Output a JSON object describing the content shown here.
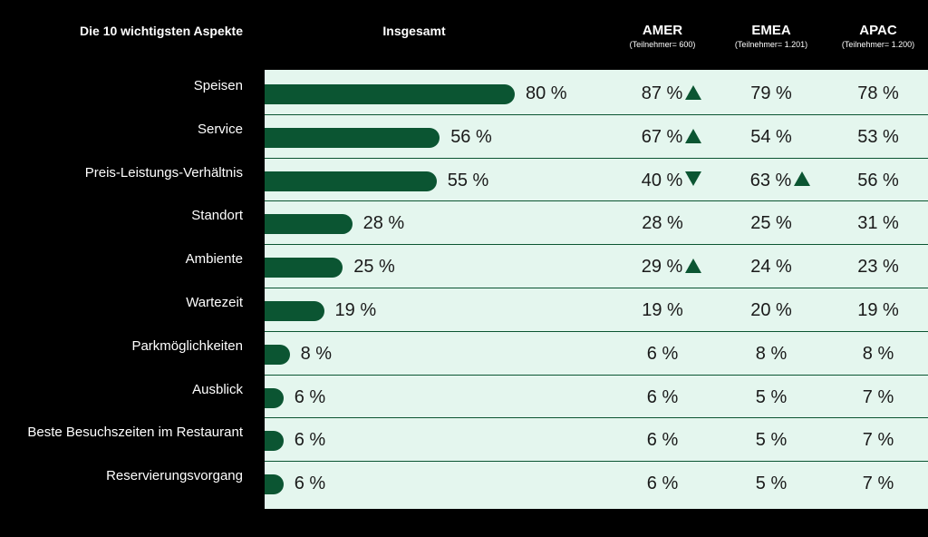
{
  "header": {
    "aspects_title": "Die 10 wichtigsten Aspekte",
    "total_title": "Insgesamt",
    "regions": [
      {
        "name": "AMER",
        "sub": "(Teilnehmer= 600)"
      },
      {
        "name": "EMEA",
        "sub": "(Teilnehmer= 1.201)"
      },
      {
        "name": "APAC",
        "sub": "(Teilnehmer= 1.200)"
      }
    ]
  },
  "colors": {
    "bar": "#0b5532",
    "panel": "#e4f6ee",
    "background": "#000000"
  },
  "chart_data": {
    "type": "bar",
    "orientation": "horizontal",
    "categories": [
      "Speisen",
      "Service",
      "Preis-Leistungs-Verhältnis",
      "Standort",
      "Ambiente",
      "Wartezeit",
      "Parkmöglichkeiten",
      "Ausblick",
      "Beste Besuchszeiten im Restaurant",
      "Reservierungsvorgang"
    ],
    "values": [
      80,
      56,
      55,
      28,
      25,
      19,
      8,
      6,
      6,
      6
    ],
    "value_labels": [
      "80 %",
      "56 %",
      "55 %",
      "28 %",
      "25 %",
      "19 %",
      "8 %",
      "6 %",
      "6 %",
      "6 %"
    ],
    "xlim": [
      0,
      100
    ],
    "grid": false,
    "table_columns": [
      {
        "name": "AMER",
        "values": [
          87,
          67,
          40,
          28,
          29,
          19,
          6,
          6,
          6,
          6
        ],
        "labels": [
          "87 %",
          "67 %",
          "40 %",
          "28 %",
          "29 %",
          "19 %",
          "6 %",
          "6 %",
          "6 %",
          "6 %"
        ],
        "indicators": [
          "up",
          "up",
          "down",
          "",
          "up",
          "",
          "",
          "",
          "",
          ""
        ]
      },
      {
        "name": "EMEA",
        "values": [
          79,
          54,
          63,
          25,
          24,
          20,
          8,
          5,
          5,
          5
        ],
        "labels": [
          "79 %",
          "54 %",
          "63 %",
          "25 %",
          "24 %",
          "20 %",
          "8 %",
          "5 %",
          "5 %",
          "5 %"
        ],
        "indicators": [
          "",
          "",
          "up",
          "",
          "",
          "",
          "",
          "",
          "",
          ""
        ]
      },
      {
        "name": "APAC",
        "values": [
          78,
          53,
          56,
          31,
          23,
          19,
          8,
          7,
          7,
          7
        ],
        "labels": [
          "78 %",
          "53 %",
          "56 %",
          "31 %",
          "23 %",
          "19 %",
          "8 %",
          "7 %",
          "7 %",
          "7 %"
        ],
        "indicators": [
          "",
          "",
          "",
          "",
          "",
          "",
          "",
          "",
          "",
          ""
        ]
      }
    ]
  }
}
